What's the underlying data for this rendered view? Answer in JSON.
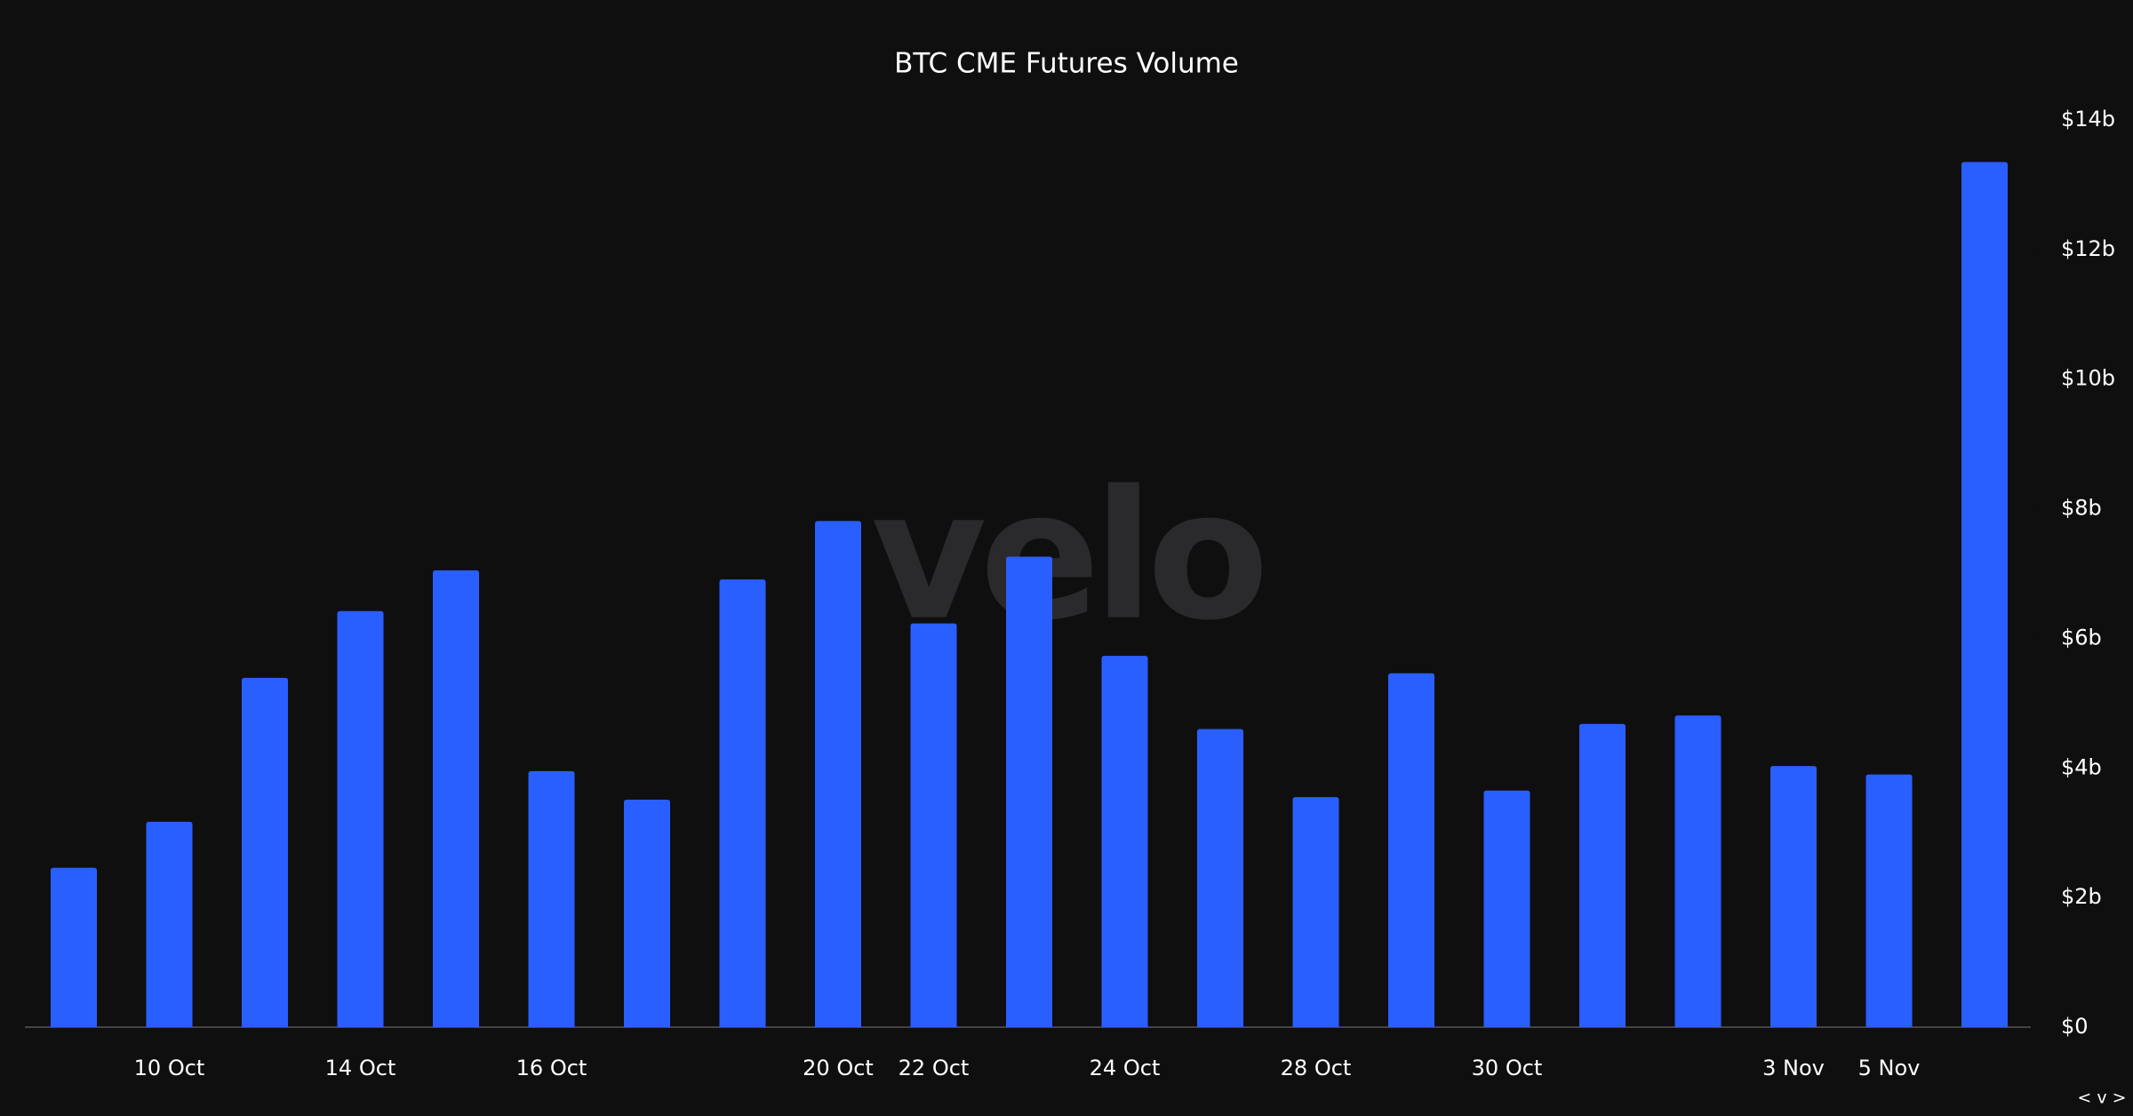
{
  "chart_data": {
    "type": "bar",
    "title": "BTC CME Futures Volume",
    "watermark": "velo",
    "corner_label": "< v >",
    "categories": [
      null,
      "10 Oct",
      null,
      "14 Oct",
      null,
      "16 Oct",
      null,
      null,
      "20 Oct",
      "22 Oct",
      null,
      "24 Oct",
      null,
      "28 Oct",
      null,
      "30 Oct",
      null,
      null,
      "3 Nov",
      "5 Nov",
      null
    ],
    "values": [
      2.46,
      3.17,
      5.39,
      6.42,
      7.05,
      3.95,
      3.51,
      6.91,
      7.81,
      6.23,
      7.26,
      5.73,
      4.6,
      3.55,
      5.46,
      3.65,
      4.68,
      4.81,
      4.03,
      3.9,
      13.35
    ],
    "color": "#2a5fff",
    "ylim": [
      0,
      14
    ],
    "yticks": [
      {
        "value": 0,
        "label": "$0"
      },
      {
        "value": 2,
        "label": "$2b"
      },
      {
        "value": 4,
        "label": "$4b"
      },
      {
        "value": 6,
        "label": "$6b"
      },
      {
        "value": 8,
        "label": "$8b"
      },
      {
        "value": 10,
        "label": "$10b"
      },
      {
        "value": 12,
        "label": "$12b"
      },
      {
        "value": 14,
        "label": "$14b"
      }
    ],
    "y_axis_side": "right",
    "grid": false
  }
}
